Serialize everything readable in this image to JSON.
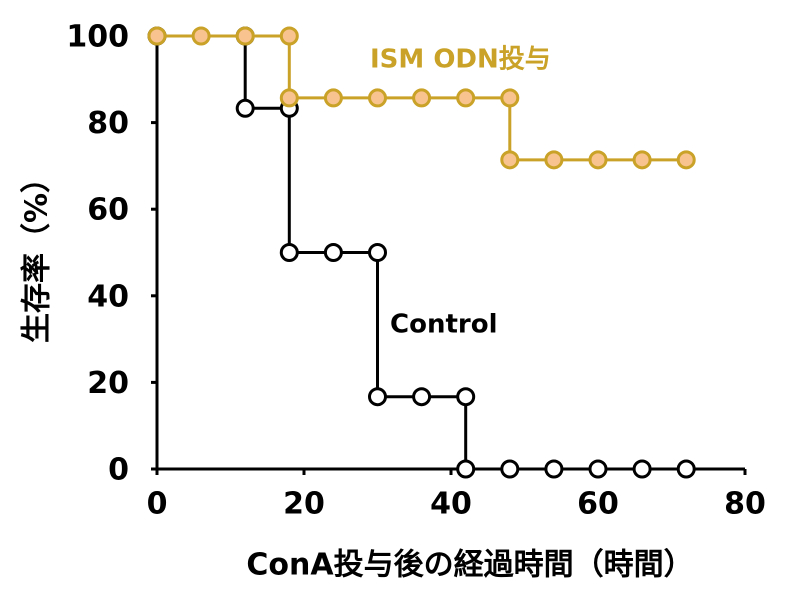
{
  "chart_data": {
    "type": "step",
    "x_label": "ConA投与後の経過時間（時間）",
    "y_label": "生存率（%）",
    "xlim": [
      0,
      80
    ],
    "xticks": [
      0,
      20,
      40,
      60,
      80
    ],
    "ylim": [
      0,
      100
    ],
    "yticks": [
      0,
      20,
      40,
      60,
      80,
      100
    ],
    "series": [
      {
        "name": "Control",
        "color": "#000000",
        "marker_fill": "#ffffff",
        "x": [
          0,
          12,
          12,
          18,
          18,
          24,
          30,
          30,
          36,
          42,
          42,
          48,
          54,
          60,
          66,
          72
        ],
        "values": [
          100,
          100,
          83.3,
          83.3,
          50,
          50,
          50,
          16.7,
          16.7,
          16.7,
          0,
          0,
          0,
          0,
          0,
          0
        ]
      },
      {
        "name": "ISM ODN投与",
        "color": "#c9a227",
        "marker_fill": "#f8c38e",
        "x": [
          0,
          6,
          12,
          18,
          18,
          24,
          30,
          36,
          42,
          48,
          48,
          54,
          60,
          66,
          72
        ],
        "values": [
          100,
          100,
          100,
          100,
          85.7,
          85.7,
          85.7,
          85.7,
          85.7,
          85.7,
          71.4,
          71.4,
          71.4,
          71.4,
          71.4
        ]
      }
    ]
  }
}
